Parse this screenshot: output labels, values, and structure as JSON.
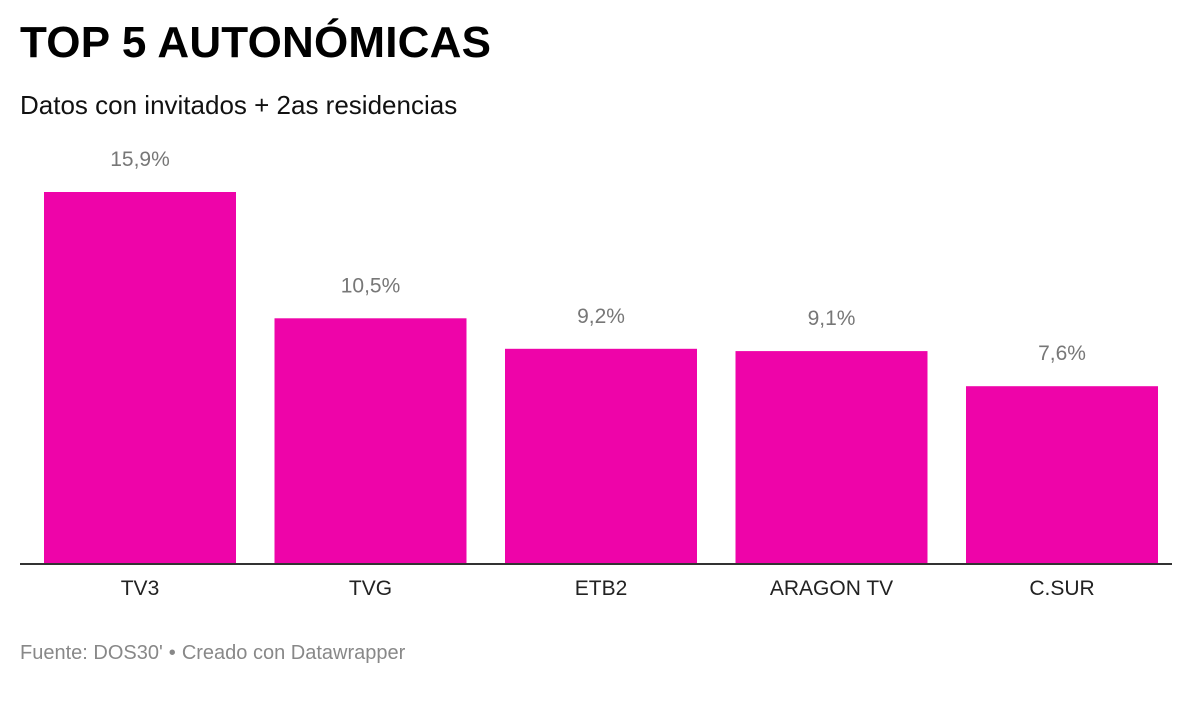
{
  "title": "TOP 5 AUTONÓMICAS",
  "subtitle": "Datos con invitados + 2as residencias",
  "footer": {
    "source": "Fuente: DOS30'",
    "separator": "•",
    "credit": "Creado con Datawrapper"
  },
  "colors": {
    "bar": "#ee04a9",
    "value_label": "#777777",
    "category_label": "#222222",
    "axis": "#333333"
  },
  "chart_data": {
    "type": "bar",
    "categories": [
      "TV3",
      "TVG",
      "ETB2",
      "ARAGON TV",
      "C.SUR"
    ],
    "values": [
      15.9,
      10.5,
      9.2,
      9.1,
      7.6
    ],
    "value_labels": [
      "15,9%",
      "10,5%",
      "9,2%",
      "9,1%",
      "7,6%"
    ],
    "title": "TOP 5 AUTONÓMICAS",
    "subtitle": "Datos con invitados + 2as residencias",
    "xlabel": "",
    "ylabel": "",
    "ylim": [
      0,
      15.9
    ],
    "grid": false,
    "legend": "none"
  }
}
